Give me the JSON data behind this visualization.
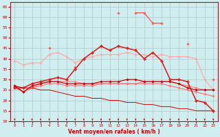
{
  "title": "",
  "xlabel": "Vent moyen/en rafales ( km/h )",
  "background_color": "#d0eef0",
  "grid_color": "#b0c8c8",
  "x": [
    0,
    1,
    2,
    3,
    4,
    5,
    6,
    7,
    8,
    9,
    10,
    11,
    12,
    13,
    14,
    15,
    16,
    17,
    18,
    19,
    20,
    21,
    22,
    23
  ],
  "series": [
    {
      "color": "#ffaaaa",
      "linewidth": 0.9,
      "marker": "D",
      "markersize": 1.8,
      "values": [
        39,
        37,
        38,
        38,
        42,
        43,
        41,
        38,
        40,
        41,
        42,
        42,
        42,
        43,
        42,
        42,
        41,
        42,
        41,
        41,
        41,
        40,
        30,
        25
      ]
    },
    {
      "color": "#ff8888",
      "linewidth": 1.0,
      "marker": "D",
      "markersize": 1.8,
      "values": [
        27,
        24,
        26,
        28,
        29,
        29,
        29,
        29,
        28,
        28,
        28,
        28,
        28,
        28,
        28,
        29,
        29,
        29,
        29,
        28,
        27,
        26,
        25,
        25
      ]
    },
    {
      "color": "#ff7777",
      "linewidth": 0.9,
      "marker": "D",
      "markersize": 1.8,
      "values": [
        26,
        24,
        26,
        27,
        28,
        28,
        27,
        27,
        27,
        27,
        28,
        28,
        28,
        28,
        28,
        28,
        28,
        28,
        27,
        26,
        25,
        24,
        23,
        22
      ]
    },
    {
      "color": "#ff5555",
      "linewidth": 1.0,
      "marker": "D",
      "markersize": 1.8,
      "values": [
        null,
        null,
        null,
        null,
        45,
        null,
        null,
        36,
        null,
        null,
        46,
        null,
        62,
        null,
        62,
        62,
        57,
        57,
        null,
        null,
        47,
        null,
        null,
        30
      ]
    },
    {
      "color": "#dd2222",
      "linewidth": 1.2,
      "marker": "D",
      "markersize": 2.2,
      "values": [
        26,
        26,
        28,
        29,
        30,
        31,
        30,
        35,
        40,
        43,
        46,
        44,
        46,
        45,
        44,
        40,
        43,
        39,
        30,
        30,
        29,
        20,
        19,
        15
      ]
    },
    {
      "color": "#cc0000",
      "linewidth": 0.9,
      "marker": "D",
      "markersize": 1.8,
      "values": [
        27,
        24,
        27,
        28,
        29,
        29,
        28,
        28,
        28,
        28,
        29,
        29,
        29,
        30,
        30,
        29,
        29,
        29,
        29,
        28,
        26,
        25,
        25,
        25
      ]
    },
    {
      "color": "#cc0000",
      "linewidth": 0.7,
      "marker": null,
      "markersize": 0,
      "values": [
        27,
        26,
        26,
        25,
        25,
        24,
        23,
        22,
        22,
        21,
        21,
        20,
        20,
        19,
        19,
        18,
        18,
        17,
        17,
        16,
        16,
        15,
        15,
        15
      ]
    }
  ],
  "ylim": [
    10,
    67
  ],
  "xlim": [
    -0.5,
    23.5
  ],
  "yticks": [
    10,
    15,
    20,
    25,
    30,
    35,
    40,
    45,
    50,
    55,
    60,
    65
  ],
  "xticks": [
    0,
    1,
    2,
    3,
    4,
    5,
    6,
    7,
    8,
    9,
    10,
    11,
    12,
    13,
    14,
    15,
    16,
    17,
    18,
    19,
    20,
    21,
    22,
    23
  ]
}
